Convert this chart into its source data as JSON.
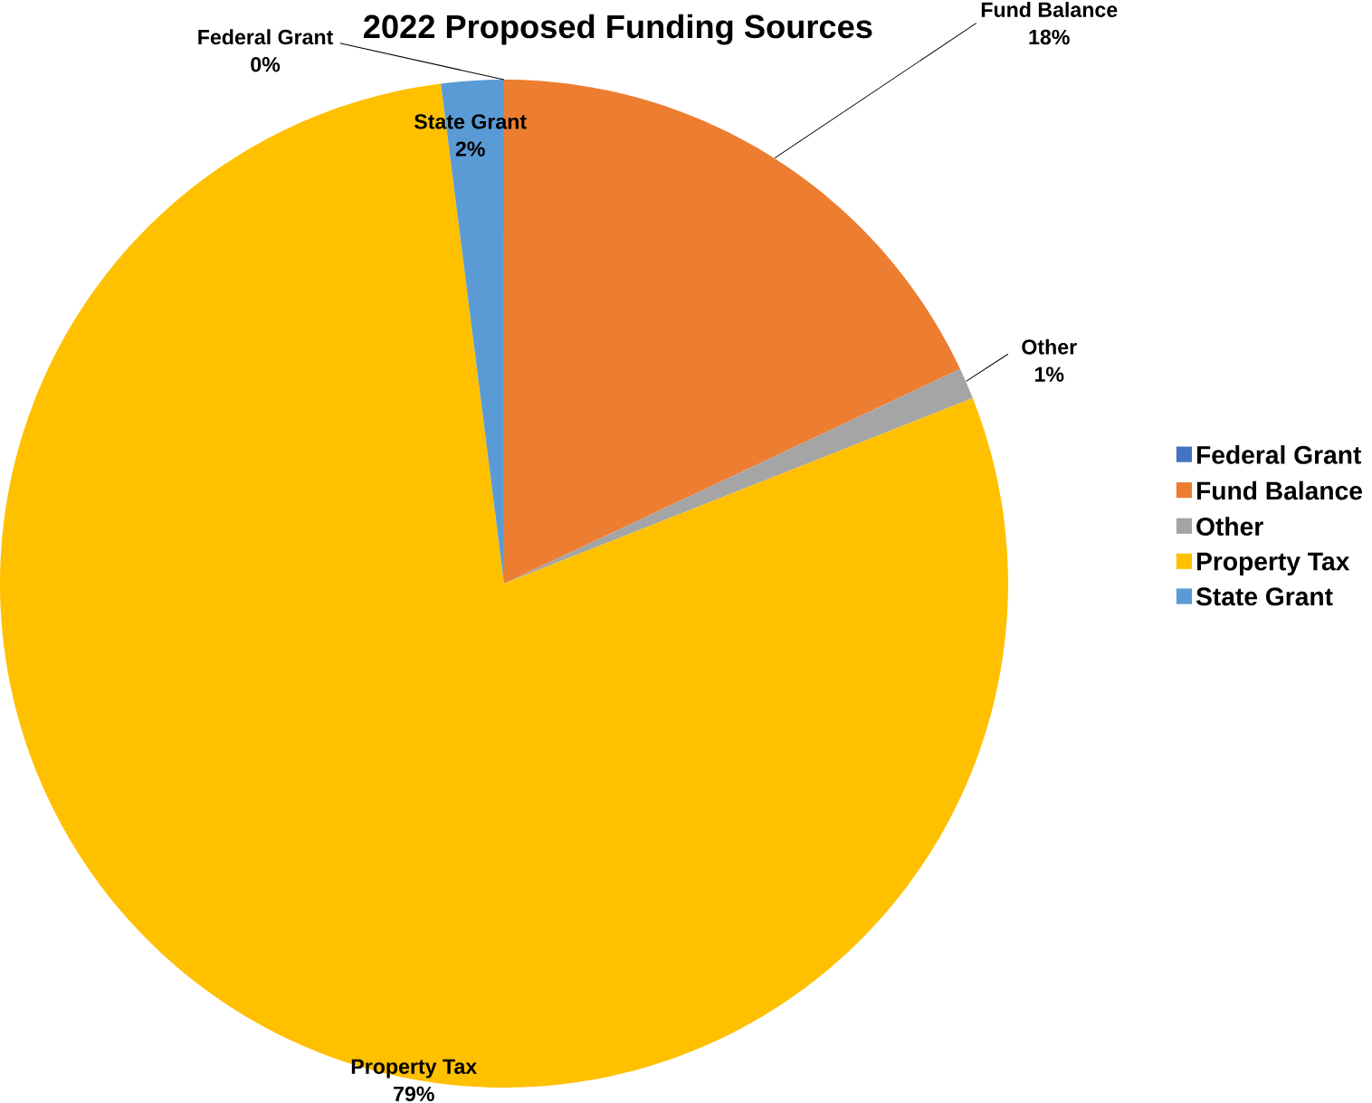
{
  "chart_data": {
    "type": "pie",
    "title": "2022 Proposed Funding Sources",
    "categories": [
      "Federal Grant",
      "Fund Balance",
      "Other",
      "Property Tax",
      "State Grant"
    ],
    "values": [
      0,
      18,
      1,
      79,
      2
    ],
    "value_labels": [
      "0%",
      "18%",
      "1%",
      "79%",
      "2%"
    ],
    "colors": [
      "#4472c4",
      "#ed7d31",
      "#a5a5a5",
      "#ffc000",
      "#5b9bd5"
    ],
    "legend": "right"
  }
}
